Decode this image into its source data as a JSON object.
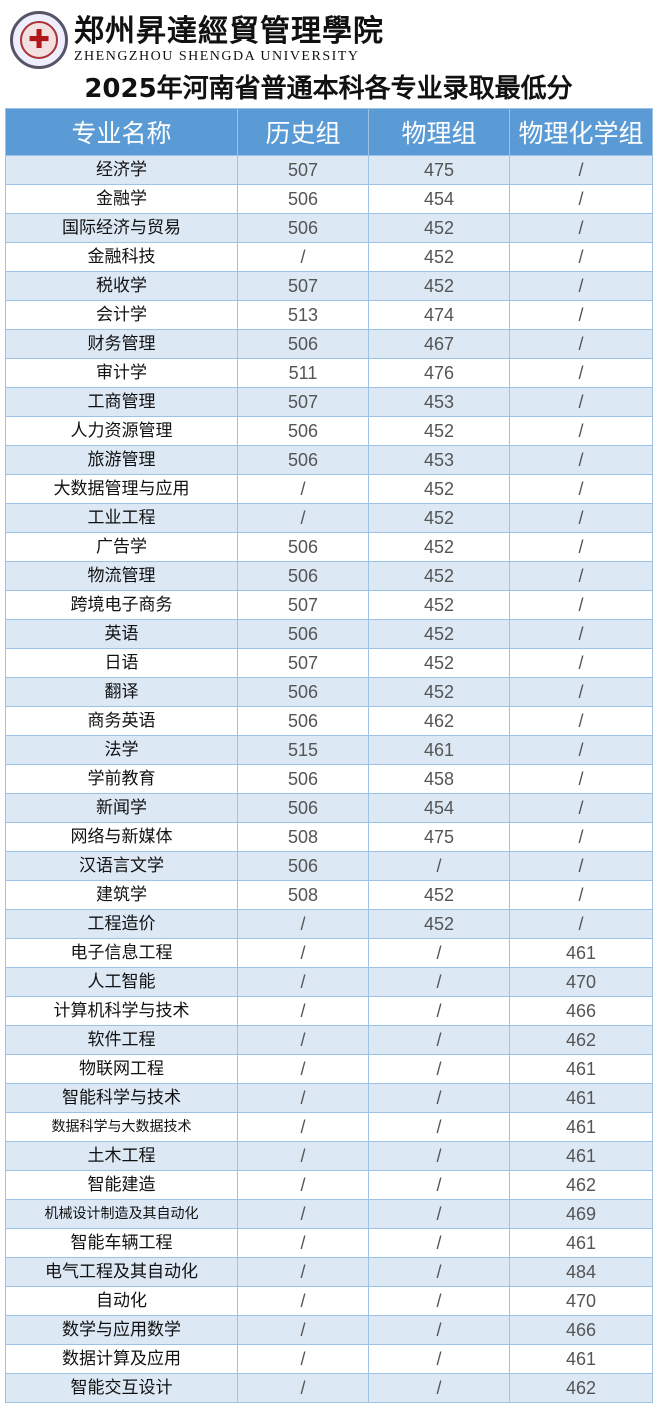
{
  "header": {
    "school_name_cn": "郑州昇達經貿管理學院",
    "school_name_en": "ZHENGZHOU SHENGDA UNIVERSITY",
    "logo_icon": "university-seal-icon"
  },
  "title": "2025年河南省普通本科各专业录取最低分",
  "table": {
    "columns": [
      "专业名称",
      "历史组",
      "物理组",
      "物理化学组"
    ],
    "colors": {
      "header_bg": "#5b9bd5",
      "alt_row_bg": "#dde8f5",
      "border": "#9cc3e6"
    },
    "rows": [
      [
        "经济学",
        "507",
        "475",
        "/"
      ],
      [
        "金融学",
        "506",
        "454",
        "/"
      ],
      [
        "国际经济与贸易",
        "506",
        "452",
        "/"
      ],
      [
        "金融科技",
        "/",
        "452",
        "/"
      ],
      [
        "税收学",
        "507",
        "452",
        "/"
      ],
      [
        "会计学",
        "513",
        "474",
        "/"
      ],
      [
        "财务管理",
        "506",
        "467",
        "/"
      ],
      [
        "审计学",
        "511",
        "476",
        "/"
      ],
      [
        "工商管理",
        "507",
        "453",
        "/"
      ],
      [
        "人力资源管理",
        "506",
        "452",
        "/"
      ],
      [
        "旅游管理",
        "506",
        "453",
        "/"
      ],
      [
        "大数据管理与应用",
        "/",
        "452",
        "/"
      ],
      [
        "工业工程",
        "/",
        "452",
        "/"
      ],
      [
        "广告学",
        "506",
        "452",
        "/"
      ],
      [
        "物流管理",
        "506",
        "452",
        "/"
      ],
      [
        "跨境电子商务",
        "507",
        "452",
        "/"
      ],
      [
        "英语",
        "506",
        "452",
        "/"
      ],
      [
        "日语",
        "507",
        "452",
        "/"
      ],
      [
        "翻译",
        "506",
        "452",
        "/"
      ],
      [
        "商务英语",
        "506",
        "462",
        "/"
      ],
      [
        "法学",
        "515",
        "461",
        "/"
      ],
      [
        "学前教育",
        "506",
        "458",
        "/"
      ],
      [
        "新闻学",
        "506",
        "454",
        "/"
      ],
      [
        "网络与新媒体",
        "508",
        "475",
        "/"
      ],
      [
        "汉语言文学",
        "506",
        "/",
        "/"
      ],
      [
        "建筑学",
        "508",
        "452",
        "/"
      ],
      [
        "工程造价",
        "/",
        "452",
        "/"
      ],
      [
        "电子信息工程",
        "/",
        "/",
        "461"
      ],
      [
        "人工智能",
        "/",
        "/",
        "470"
      ],
      [
        "计算机科学与技术",
        "/",
        "/",
        "466"
      ],
      [
        "软件工程",
        "/",
        "/",
        "462"
      ],
      [
        "物联网工程",
        "/",
        "/",
        "461"
      ],
      [
        "智能科学与技术",
        "/",
        "/",
        "461"
      ],
      [
        "数据科学与大数据技术",
        "/",
        "/",
        "461"
      ],
      [
        "土木工程",
        "/",
        "/",
        "461"
      ],
      [
        "智能建造",
        "/",
        "/",
        "462"
      ],
      [
        "机械设计制造及其自动化",
        "/",
        "/",
        "469"
      ],
      [
        "智能车辆工程",
        "/",
        "/",
        "461"
      ],
      [
        "电气工程及其自动化",
        "/",
        "/",
        "484"
      ],
      [
        "自动化",
        "/",
        "/",
        "470"
      ],
      [
        "数学与应用数学",
        "/",
        "/",
        "466"
      ],
      [
        "数据计算及应用",
        "/",
        "/",
        "461"
      ],
      [
        "智能交互设计",
        "/",
        "/",
        "462"
      ]
    ]
  }
}
